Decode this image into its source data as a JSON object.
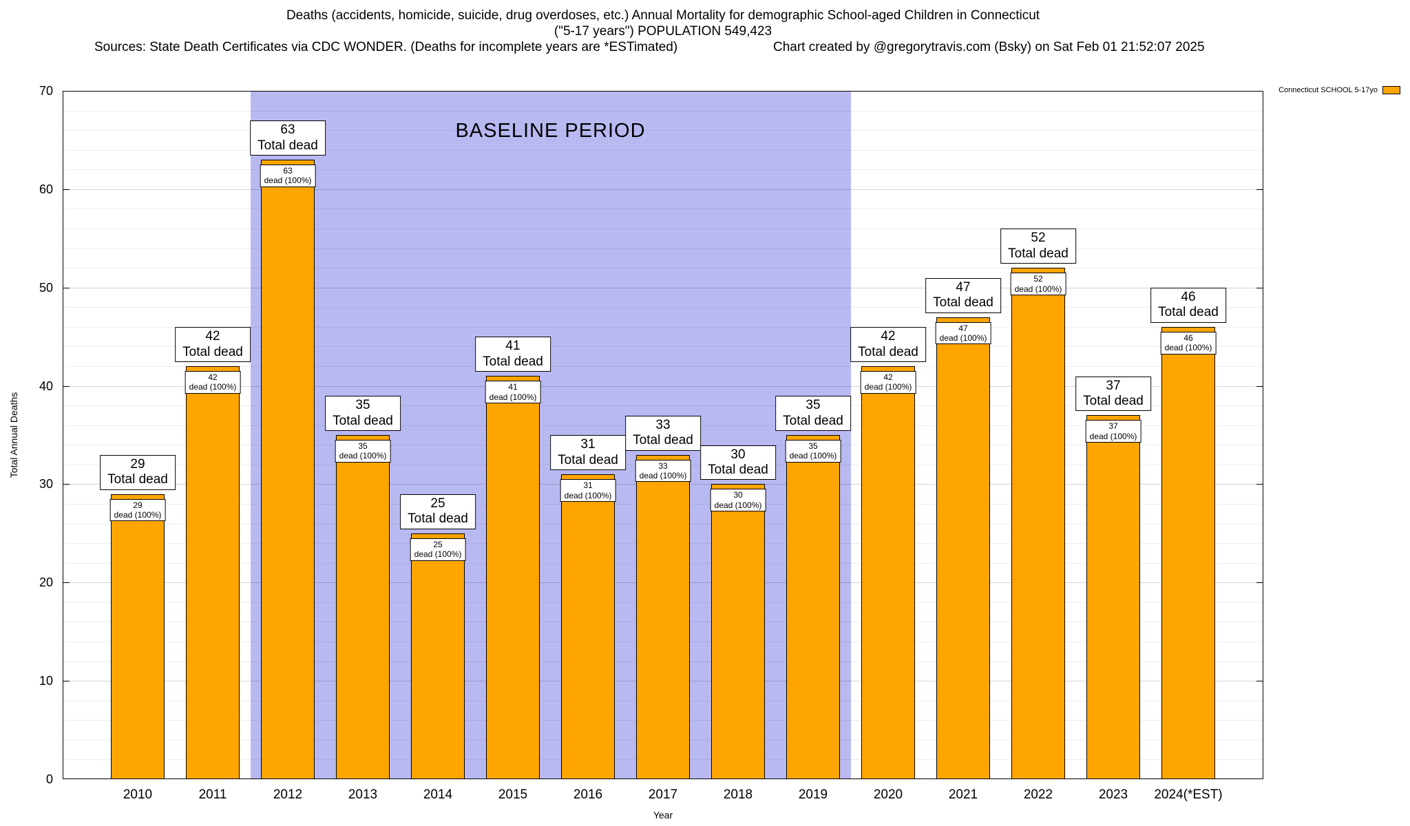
{
  "chart_data": {
    "type": "bar",
    "title": "Deaths (accidents, homicide, suicide, drug overdoses, etc.) Annual Mortality for demographic School-aged Children in Connecticut",
    "subtitle": "(\"5-17 years\") POPULATION 549,423",
    "sources": "Sources: State Death Certificates via CDC WONDER. (Deaths for incomplete years are *ESTimated)",
    "credit": "Chart created by @gregorytravis.com (Bsky) on Sat Feb 01 21:52:07 2025",
    "categories": [
      "2010",
      "2011",
      "2012",
      "2013",
      "2014",
      "2015",
      "2016",
      "2017",
      "2018",
      "2019",
      "2020",
      "2021",
      "2022",
      "2023",
      "2024(*EST)"
    ],
    "values": [
      29,
      42,
      63,
      35,
      25,
      41,
      31,
      33,
      30,
      35,
      42,
      47,
      52,
      37,
      46
    ],
    "xlabel": "Year",
    "ylabel": "Total Annual Deaths",
    "ylim": [
      0,
      70
    ],
    "ytick_step": 10,
    "minor_tick_step": 2,
    "grid": true,
    "bar_color": "#ffa500",
    "bar_border_color": "#000000",
    "outer_label_suffix": "Total dead",
    "inner_label_suffix": "dead (100%)",
    "legend": {
      "label": "Connecticut SCHOOL 5-17yo",
      "swatch_color": "#ffa500",
      "position": "top-right"
    },
    "baseline_region": {
      "text": "BASELINE PERIOD",
      "start_category": "2012",
      "end_category": "2019",
      "color": "#b9b9f2"
    }
  }
}
